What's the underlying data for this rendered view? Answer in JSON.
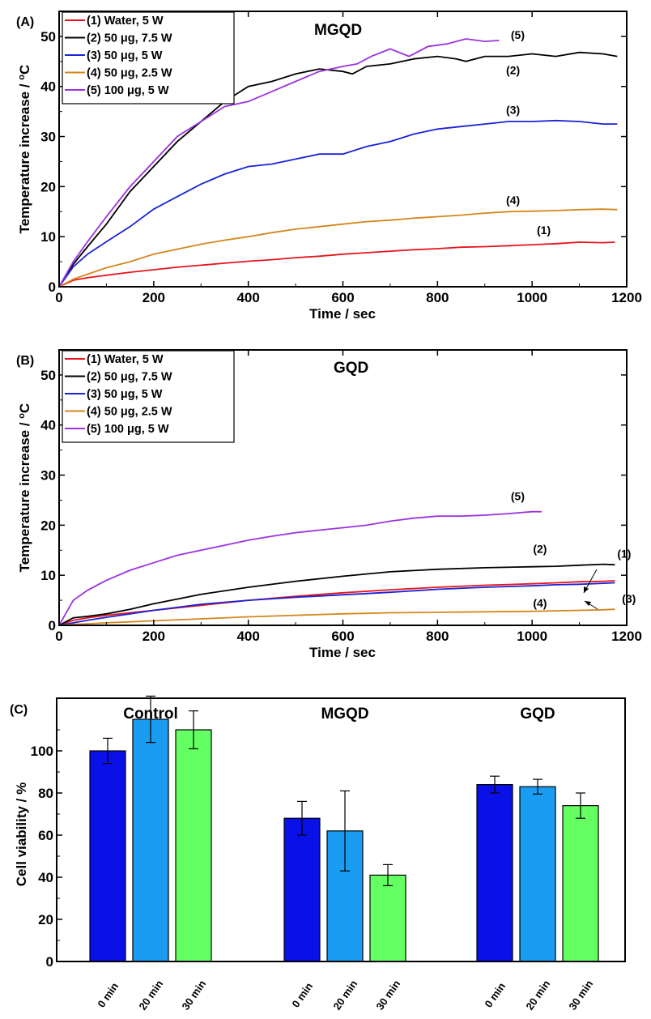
{
  "chart_data": [
    {
      "type": "line",
      "panel": "(A)",
      "title": "MGQD",
      "xlabel": "Time / sec",
      "ylabel": "Temperature increase / °C",
      "ylabel_main": "Temperature increase / ",
      "ylabel_sup": "o",
      "ylabel_unit": "C",
      "xlim": [
        0,
        1200
      ],
      "ylim": [
        0,
        55
      ],
      "xticks": [
        0,
        200,
        400,
        600,
        800,
        1000,
        1200
      ],
      "yticks": [
        0,
        10,
        20,
        30,
        40,
        50
      ],
      "grid": false,
      "legend_position": "top-left",
      "series": [
        {
          "name": "(1) Water, 5 W",
          "tag": "(1)",
          "color": "#e8141c",
          "x": [
            0,
            30,
            60,
            100,
            150,
            200,
            250,
            300,
            350,
            400,
            450,
            500,
            550,
            600,
            650,
            700,
            750,
            800,
            850,
            900,
            950,
            1000,
            1050,
            1100,
            1150,
            1175
          ],
          "y": [
            0,
            1.3,
            1.8,
            2.3,
            2.9,
            3.4,
            3.9,
            4.3,
            4.7,
            5.1,
            5.4,
            5.8,
            6.1,
            6.5,
            6.8,
            7.1,
            7.4,
            7.6,
            7.9,
            8.0,
            8.2,
            8.4,
            8.6,
            8.9,
            8.8,
            8.9
          ],
          "label_at": [
            1010,
            10.5
          ]
        },
        {
          "name": "(2) 50 μg, 7.5 W",
          "tag": "(2)",
          "color": "#000000",
          "x": [
            0,
            30,
            60,
            100,
            150,
            200,
            250,
            300,
            350,
            400,
            450,
            500,
            550,
            600,
            620,
            650,
            700,
            750,
            800,
            840,
            860,
            900,
            950,
            1000,
            1050,
            1100,
            1150,
            1180
          ],
          "y": [
            0,
            4.5,
            8,
            12.5,
            19,
            24,
            29,
            33,
            37,
            40,
            41,
            42.5,
            43.5,
            43,
            42.5,
            44,
            44.5,
            45.5,
            46,
            45.5,
            45,
            46,
            46,
            46.5,
            46,
            46.8,
            46.5,
            46
          ],
          "label_at": [
            945,
            42.5
          ]
        },
        {
          "name": "(3) 50 μg, 5 W",
          "tag": "(3)",
          "color": "#1a22d8",
          "x": [
            0,
            30,
            60,
            100,
            150,
            200,
            250,
            300,
            350,
            400,
            450,
            500,
            550,
            600,
            650,
            700,
            750,
            800,
            850,
            900,
            950,
            1000,
            1050,
            1100,
            1150,
            1180
          ],
          "y": [
            0,
            4,
            6.5,
            9,
            12,
            15.5,
            18,
            20.5,
            22.5,
            24,
            24.5,
            25.5,
            26.5,
            26.5,
            28,
            29,
            30.5,
            31.5,
            32,
            32.5,
            33,
            33,
            33.2,
            33,
            32.5,
            32.5
          ],
          "label_at": [
            945,
            34.5
          ]
        },
        {
          "name": "(4) 50 μg, 2.5 W",
          "tag": "(4)",
          "color": "#d4861c",
          "x": [
            0,
            30,
            60,
            100,
            150,
            200,
            250,
            300,
            350,
            400,
            450,
            500,
            550,
            600,
            650,
            700,
            750,
            800,
            850,
            900,
            950,
            1000,
            1050,
            1100,
            1150,
            1180
          ],
          "y": [
            0,
            1.5,
            2.5,
            3.8,
            5,
            6.5,
            7.5,
            8.5,
            9.3,
            10,
            10.8,
            11.5,
            12,
            12.5,
            13,
            13.3,
            13.7,
            14,
            14.3,
            14.7,
            15,
            15.1,
            15.2,
            15.4,
            15.5,
            15.4
          ],
          "label_at": [
            945,
            16.5
          ]
        },
        {
          "name": "(5) 100 μg, 5 W",
          "tag": "(5)",
          "color": "#9b33e0",
          "x": [
            0,
            30,
            60,
            100,
            150,
            200,
            250,
            300,
            350,
            400,
            450,
            500,
            550,
            600,
            630,
            660,
            700,
            740,
            780,
            820,
            860,
            900,
            930
          ],
          "y": [
            0,
            5,
            9,
            14,
            20,
            25,
            30,
            33,
            36,
            37,
            39,
            41,
            43,
            44,
            44.5,
            46,
            47.5,
            46,
            48,
            48.5,
            49.5,
            49,
            49.2
          ],
          "label_at": [
            955,
            49.5
          ]
        }
      ]
    },
    {
      "type": "line",
      "panel": "(B)",
      "title": "GQD",
      "xlabel": "Time / sec",
      "ylabel": "Temperature increase / °C",
      "ylabel_main": "Temperature increase / ",
      "ylabel_sup": "o",
      "ylabel_unit": "C",
      "xlim": [
        0,
        1200
      ],
      "ylim": [
        0,
        55
      ],
      "xticks": [
        0,
        200,
        400,
        600,
        800,
        1000,
        1200
      ],
      "yticks": [
        0,
        10,
        20,
        30,
        40,
        50
      ],
      "grid": false,
      "legend_position": "top-left",
      "series": [
        {
          "name": "(1) Water, 5 W",
          "tag": "(1)",
          "color": "#e8141c",
          "x": [
            0,
            30,
            60,
            100,
            150,
            200,
            300,
            400,
            500,
            600,
            700,
            800,
            900,
            1000,
            1050,
            1100,
            1150,
            1175
          ],
          "y": [
            0,
            1,
            1.5,
            2,
            2.5,
            3,
            4,
            5,
            5.8,
            6.5,
            7.1,
            7.6,
            8,
            8.3,
            8.5,
            8.7,
            8.8,
            8.9
          ],
          "label_at": [
            1180,
            13.5
          ]
        },
        {
          "name": "(2) 50 μg, 7.5 W",
          "tag": "(2)",
          "color": "#000000",
          "x": [
            0,
            30,
            60,
            100,
            150,
            200,
            300,
            400,
            500,
            600,
            700,
            800,
            900,
            1000,
            1050,
            1100,
            1150,
            1175
          ],
          "y": [
            0,
            1.5,
            1.8,
            2.3,
            3.2,
            4.3,
            6.2,
            7.6,
            8.8,
            9.8,
            10.7,
            11.2,
            11.5,
            11.7,
            11.8,
            12,
            12.2,
            12.1
          ],
          "label_at": [
            1002,
            14.5
          ]
        },
        {
          "name": "(3) 50 μg, 5 W",
          "tag": "(3)",
          "color": "#1a22d8",
          "x": [
            0,
            30,
            60,
            100,
            150,
            200,
            300,
            400,
            500,
            600,
            700,
            800,
            900,
            1000,
            1050,
            1100,
            1150,
            1175
          ],
          "y": [
            0,
            0.5,
            1,
            1.6,
            2.3,
            3,
            4.2,
            5,
            5.6,
            6.1,
            6.6,
            7.2,
            7.6,
            7.9,
            8.1,
            8.2,
            8.4,
            8.5
          ],
          "label_at": [
            1190,
            4.5
          ]
        },
        {
          "name": "(4) 50 μg, 2.5 W",
          "tag": "(4)",
          "color": "#d4861c",
          "x": [
            0,
            30,
            60,
            100,
            150,
            200,
            300,
            400,
            500,
            600,
            700,
            800,
            900,
            1000,
            1050,
            1100,
            1150,
            1175
          ],
          "y": [
            0,
            0.2,
            0.3,
            0.5,
            0.7,
            0.9,
            1.3,
            1.7,
            2,
            2.3,
            2.5,
            2.6,
            2.7,
            2.8,
            2.9,
            3,
            3.1,
            3.2
          ],
          "label_at": [
            1002,
            3.6
          ]
        },
        {
          "name": "(5) 100 μg, 5 W",
          "tag": "(5)",
          "color": "#9b33e0",
          "x": [
            0,
            30,
            60,
            100,
            150,
            200,
            250,
            300,
            350,
            400,
            450,
            500,
            550,
            600,
            650,
            700,
            750,
            800,
            850,
            900,
            950,
            1000,
            1020
          ],
          "y": [
            0,
            5,
            7,
            9,
            11,
            12.5,
            14,
            15,
            16,
            17,
            17.8,
            18.5,
            19,
            19.5,
            20,
            20.8,
            21.4,
            21.8,
            21.8,
            22,
            22.3,
            22.7,
            22.7
          ],
          "label_at": [
            955,
            25
          ]
        }
      ]
    },
    {
      "type": "bar",
      "panel": "(C)",
      "xlabel": "",
      "ylabel": "Cell viability / %",
      "ylim": [
        0,
        125
      ],
      "yticks": [
        0,
        20,
        40,
        60,
        80,
        100
      ],
      "grid": false,
      "groups": [
        "Control",
        "MGQD",
        "GQD"
      ],
      "categories": [
        "0 min",
        "20 min",
        "30 min"
      ],
      "colors": [
        "#0a10e8",
        "#1a9cf2",
        "#63ff63"
      ],
      "series": [
        {
          "group": "Control",
          "values": [
            100,
            115,
            110
          ],
          "errors": [
            6,
            11,
            9
          ]
        },
        {
          "group": "MGQD",
          "values": [
            68,
            62,
            41
          ],
          "errors": [
            8,
            19,
            5
          ]
        },
        {
          "group": "GQD",
          "values": [
            84,
            83,
            74
          ],
          "errors": [
            4,
            3.5,
            6
          ]
        }
      ]
    }
  ]
}
